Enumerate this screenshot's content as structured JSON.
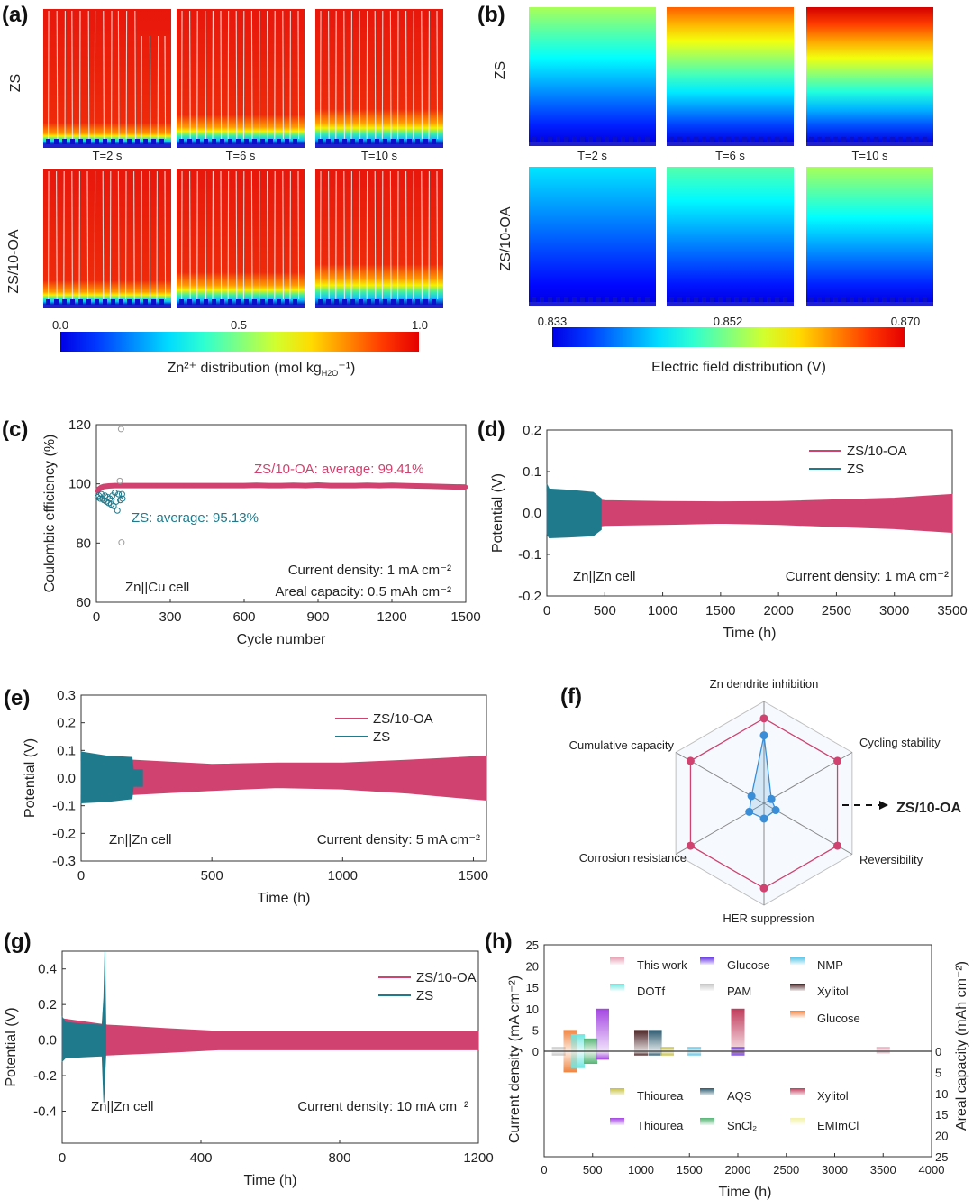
{
  "panels": {
    "a": "(a)",
    "b": "(b)",
    "c": "(c)",
    "d": "(d)",
    "e": "(e)",
    "f": "(f)",
    "g": "(g)",
    "h": "(h)"
  },
  "colors": {
    "zs10oa": "#d0426f",
    "zs": "#1f7a8c",
    "radar_zs": "#3a8ed8",
    "grid": "#bfbfbf"
  },
  "chart_data": [
    {
      "panel": "a",
      "type": "heatmap",
      "colormap": "jet",
      "row_labels": [
        "ZS",
        "ZS/10-OA"
      ],
      "col_labels": [
        "T=2 s",
        "T=6 s",
        "T=10 s"
      ],
      "colorbar": {
        "ticks": [
          "0.0",
          "0.5",
          "1.0"
        ],
        "range": [
          0,
          1
        ],
        "caption_main": "Zn²⁺ distribution (mol kg",
        "caption_sub": "H2O",
        "caption_end": "⁻¹)"
      }
    },
    {
      "panel": "b",
      "type": "heatmap",
      "colormap": "jet",
      "row_labels": [
        "ZS",
        "ZS/10-OA"
      ],
      "col_labels": [
        "T=2 s",
        "T=6 s",
        "T=10 s"
      ],
      "top_potential_V": [
        [
          0.853,
          0.862,
          0.867
        ],
        [
          0.846,
          0.85,
          0.853
        ]
      ],
      "colorbar": {
        "ticks": [
          "0.833",
          "0.852",
          "0.870"
        ],
        "range": [
          0.833,
          0.87
        ],
        "caption": "Electric field distribution (V)"
      }
    },
    {
      "panel": "c",
      "type": "scatter",
      "xlabel": "Cycle number",
      "ylabel": "Coulombic efficiency (%)",
      "xlim": [
        0,
        1500
      ],
      "ylim": [
        60,
        120
      ],
      "xticks": [
        0,
        300,
        600,
        900,
        1200,
        1500
      ],
      "yticks": [
        60,
        80,
        100,
        120
      ],
      "annotations": {
        "zs10oa": "ZS/10-OA: average: 99.41%",
        "zs": "ZS: average: 95.13%",
        "cell": "Zn||Cu cell",
        "current": "Current density: 1 mA cm⁻²",
        "capacity": "Areal capacity: 0.5 mAh cm⁻²"
      },
      "series": [
        {
          "key": "zs10oa",
          "points": [
            [
              5,
              97.5
            ],
            [
              10,
              98.2
            ],
            [
              20,
              98.8
            ],
            [
              30,
              99.1
            ],
            [
              50,
              99.3
            ],
            [
              75,
              99.4
            ],
            [
              100,
              99.4
            ],
            [
              150,
              99.4
            ],
            [
              200,
              99.4
            ],
            [
              250,
              99.4
            ],
            [
              300,
              99.4
            ],
            [
              350,
              99.4
            ],
            [
              400,
              99.4
            ],
            [
              450,
              99.4
            ],
            [
              500,
              99.4
            ],
            [
              550,
              99.4
            ],
            [
              600,
              99.4
            ],
            [
              650,
              99.5
            ],
            [
              700,
              99.4
            ],
            [
              750,
              99.4
            ],
            [
              800,
              99.5
            ],
            [
              850,
              99.4
            ],
            [
              900,
              99.6
            ],
            [
              950,
              99.4
            ],
            [
              1000,
              99.4
            ],
            [
              1050,
              99.4
            ],
            [
              1100,
              99.5
            ],
            [
              1150,
              99.4
            ],
            [
              1200,
              99.5
            ],
            [
              1250,
              99.4
            ],
            [
              1300,
              99.3
            ],
            [
              1350,
              99.2
            ],
            [
              1400,
              99.1
            ],
            [
              1450,
              99.0
            ],
            [
              1500,
              98.9
            ]
          ]
        },
        {
          "key": "zs",
          "points": [
            [
              5,
              95.5
            ],
            [
              10,
              96
            ],
            [
              15,
              95
            ],
            [
              20,
              96.5
            ],
            [
              25,
              95
            ],
            [
              30,
              94.5
            ],
            [
              35,
              96
            ],
            [
              40,
              94
            ],
            [
              45,
              95.5
            ],
            [
              50,
              93.5
            ],
            [
              55,
              95
            ],
            [
              60,
              93
            ],
            [
              65,
              96
            ],
            [
              70,
              92.5
            ],
            [
              75,
              97
            ],
            [
              80,
              94
            ],
            [
              85,
              91
            ],
            [
              90,
              96.5
            ],
            [
              95,
              101
            ],
            [
              97,
              94.5
            ],
            [
              100,
              118.5
            ],
            [
              102,
              80.2
            ],
            [
              104,
              96.5
            ],
            [
              106,
              95
            ]
          ]
        }
      ]
    },
    {
      "panel": "d",
      "type": "area",
      "xlabel": "Time (h)",
      "ylabel": "Potential (V)",
      "xlim": [
        0,
        3500
      ],
      "ylim": [
        -0.2,
        0.2
      ],
      "xticks": [
        0,
        500,
        1000,
        1500,
        2000,
        2500,
        3000,
        3500
      ],
      "yticks": [
        -0.2,
        -0.1,
        0.0,
        0.1,
        0.2
      ],
      "legend": [
        "ZS/10-OA",
        "ZS"
      ],
      "legend_position": "top-right",
      "annotations": {
        "cell": "Zn||Zn cell",
        "current": "Current density: 1 mA cm⁻²"
      },
      "series": [
        {
          "key": "zs10oa",
          "name": "ZS/10-OA",
          "envelope": [
            [
              0,
              -0.05,
              0.05
            ],
            [
              500,
              -0.03,
              0.03
            ],
            [
              1000,
              -0.028,
              0.028
            ],
            [
              1500,
              -0.025,
              0.027
            ],
            [
              2000,
              -0.028,
              0.028
            ],
            [
              2500,
              -0.033,
              0.032
            ],
            [
              3000,
              -0.038,
              0.036
            ],
            [
              3500,
              -0.047,
              0.045
            ]
          ]
        },
        {
          "key": "zs",
          "name": "ZS",
          "envelope": [
            [
              0,
              -0.05,
              0.07
            ],
            [
              20,
              -0.06,
              0.058
            ],
            [
              200,
              -0.058,
              0.055
            ],
            [
              400,
              -0.055,
              0.05
            ],
            [
              470,
              -0.04,
              0.035
            ]
          ]
        }
      ]
    },
    {
      "panel": "e",
      "type": "area",
      "xlabel": "Time (h)",
      "ylabel": "Potential (V)",
      "xlim": [
        0,
        1550
      ],
      "ylim": [
        -0.3,
        0.3
      ],
      "xticks": [
        0,
        500,
        1000,
        1500
      ],
      "yticks": [
        -0.3,
        -0.2,
        -0.1,
        0.0,
        0.1,
        0.2,
        0.3
      ],
      "legend": [
        "ZS/10-OA",
        "ZS"
      ],
      "legend_position": "top-right",
      "annotations": {
        "cell": "Zn||Zn cell",
        "current": "Current density: 5 mA cm⁻²"
      },
      "series": [
        {
          "key": "zs10oa",
          "name": "ZS/10-OA",
          "envelope": [
            [
              0,
              -0.06,
              0.06
            ],
            [
              200,
              -0.06,
              0.065
            ],
            [
              500,
              -0.045,
              0.05
            ],
            [
              750,
              -0.035,
              0.055
            ],
            [
              1000,
              -0.04,
              0.055
            ],
            [
              1250,
              -0.055,
              0.065
            ],
            [
              1550,
              -0.08,
              0.08
            ]
          ]
        },
        {
          "key": "zs",
          "name": "ZS",
          "envelope": [
            [
              0,
              -0.09,
              0.095
            ],
            [
              100,
              -0.085,
              0.08
            ],
            [
              195,
              -0.075,
              0.075
            ],
            [
              200,
              -0.03,
              0.03
            ],
            [
              235,
              -0.03,
              0.03
            ]
          ]
        }
      ]
    },
    {
      "panel": "f",
      "type": "radar",
      "max": 6,
      "rings": 6,
      "axes": [
        "Zn dendrite inhibition",
        "Cycling stability",
        "Reversibility",
        "HER suppression",
        "Corrosion resistance",
        "Cumulative capacity"
      ],
      "callout": "ZS/10-OA",
      "series": [
        {
          "key": "zs10oa",
          "values": [
            5,
            5,
            5,
            5,
            5,
            5
          ]
        },
        {
          "key": "zs",
          "values": [
            4,
            0.5,
            0.8,
            0.9,
            1.0,
            0.85
          ]
        }
      ]
    },
    {
      "panel": "g",
      "type": "area",
      "xlabel": "Time (h)",
      "ylabel": "Potential (V)",
      "xlim": [
        0,
        1200
      ],
      "ylim": [
        -0.58,
        0.5
      ],
      "xticks": [
        0,
        400,
        800,
        1200
      ],
      "yticks": [
        -0.4,
        -0.2,
        0.0,
        0.2,
        0.4
      ],
      "legend": [
        "ZS/10-OA",
        "ZS"
      ],
      "legend_position": "top-right",
      "annotations": {
        "cell": "Zn||Zn cell",
        "current": "Current density: 10 mA cm⁻²"
      },
      "series": [
        {
          "key": "zs10oa",
          "name": "ZS/10-OA",
          "envelope": [
            [
              0,
              -0.1,
              0.12
            ],
            [
              130,
              -0.085,
              0.085
            ],
            [
              300,
              -0.07,
              0.065
            ],
            [
              450,
              -0.055,
              0.05
            ],
            [
              800,
              -0.055,
              0.05
            ],
            [
              1200,
              -0.055,
              0.05
            ]
          ]
        },
        {
          "key": "zs",
          "name": "ZS",
          "envelope": [
            [
              0,
              -0.12,
              0.13
            ],
            [
              10,
              -0.1,
              0.1
            ],
            [
              60,
              -0.095,
              0.09
            ],
            [
              115,
              -0.09,
              0.085
            ],
            [
              120,
              -0.35,
              0.24
            ],
            [
              123,
              -0.2,
              0.5
            ],
            [
              126,
              -0.08,
              0.08
            ]
          ]
        }
      ]
    },
    {
      "panel": "h",
      "type": "bar",
      "xlabel": "Time (h)",
      "ylabel": "Current density (mA cm⁻²)",
      "ylabel_right": "Areal capacity (mAh cm⁻²)",
      "xlim": [
        0,
        4000
      ],
      "ylim": [
        0,
        25
      ],
      "ylim_right": [
        0,
        25
      ],
      "xticks": [
        0,
        500,
        1000,
        1500,
        2000,
        2500,
        3000,
        3500,
        4000
      ],
      "yticks": [
        0,
        5,
        10,
        15,
        20,
        25
      ],
      "yticks_right": [
        0,
        5,
        10,
        15,
        20,
        25
      ],
      "legend": [
        {
          "label": "This work",
          "color": "#e8a3b6"
        },
        {
          "label": "Glucose",
          "color": "#6a3de0"
        },
        {
          "label": "NMP",
          "color": "#5ec6e6"
        },
        {
          "label": "DOTf",
          "color": "#6ee6e0"
        },
        {
          "label": "PAM",
          "color": "#c6c6c6"
        },
        {
          "label": "Xylitol",
          "color": "#4a2224"
        },
        {
          "label": "Glucose",
          "color": "#f08442"
        },
        {
          "label": "Thiourea",
          "color": "#c6c040"
        },
        {
          "label": "AQS",
          "color": "#2b5a6e"
        },
        {
          "label": "Xylitol",
          "color": "#c03c5c"
        },
        {
          "label": "Thiourea",
          "color": "#a446e2"
        },
        {
          "label": "SnCl₂",
          "color": "#56b474"
        },
        {
          "label": "EMImCl",
          "color": "#f2f2a8"
        }
      ],
      "bars": [
        {
          "legend": 4,
          "time_h": 150,
          "current_density": 1,
          "areal_capacity": 1
        },
        {
          "legend": 6,
          "time_h": 270,
          "current_density": 5,
          "areal_capacity": 5
        },
        {
          "legend": 3,
          "time_h": 350,
          "current_density": 4,
          "areal_capacity": 4
        },
        {
          "legend": 11,
          "time_h": 480,
          "current_density": 3,
          "areal_capacity": 3
        },
        {
          "legend": 10,
          "time_h": 600,
          "current_density": 10,
          "areal_capacity": 2
        },
        {
          "legend": 5,
          "time_h": 1000,
          "current_density": 5,
          "areal_capacity": 1
        },
        {
          "legend": 8,
          "time_h": 1145,
          "current_density": 5,
          "areal_capacity": 1
        },
        {
          "legend": 7,
          "time_h": 1270,
          "current_density": 1,
          "areal_capacity": 1
        },
        {
          "legend": 2,
          "time_h": 1550,
          "current_density": 1,
          "areal_capacity": 1
        },
        {
          "legend": 9,
          "time_h": 2000,
          "current_density": 10,
          "areal_capacity": 0.5
        },
        {
          "legend": 1,
          "time_h": 2000,
          "current_density": 1,
          "areal_capacity": 1
        },
        {
          "legend": 0,
          "time_h": 3500,
          "current_density": 1,
          "areal_capacity": 0.5
        }
      ]
    }
  ]
}
